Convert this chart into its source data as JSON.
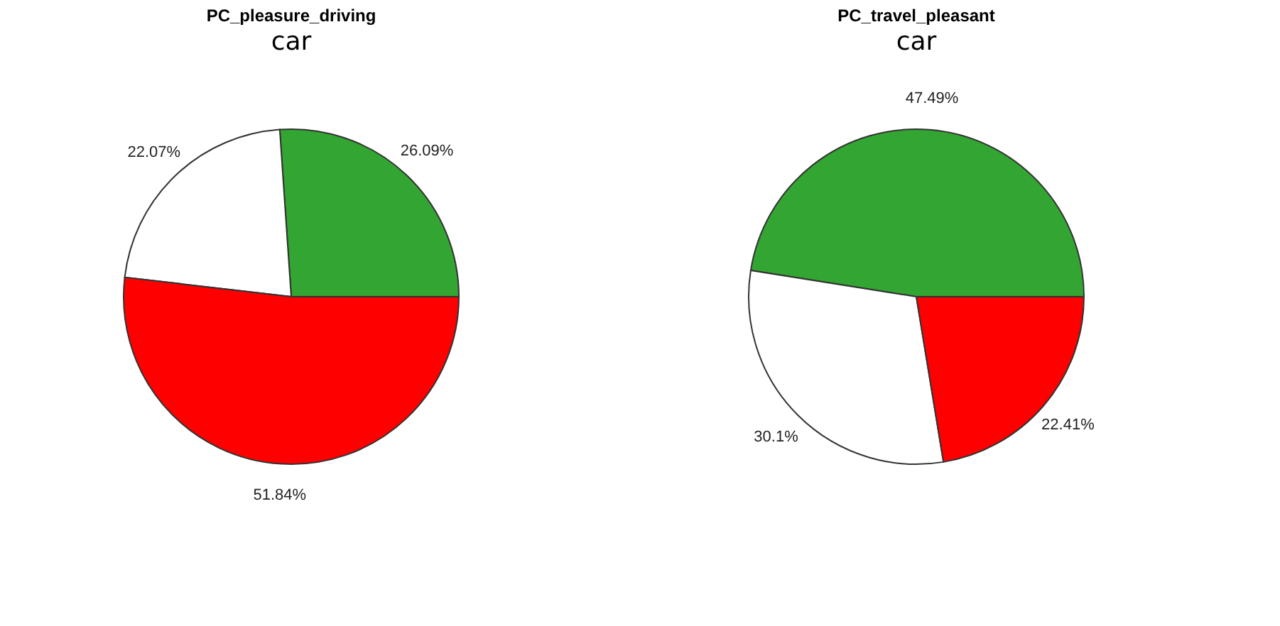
{
  "chart_data": [
    {
      "type": "pie",
      "title": "PC_pleasure_driving",
      "subtitle": "car",
      "categories": [
        null,
        null,
        null
      ],
      "values": [
        26.09,
        22.07,
        51.84
      ],
      "colors": [
        "#33a532",
        "#ffffff",
        "#ff0000"
      ],
      "value_labels": [
        "26.09%",
        "22.07%",
        "51.84%"
      ]
    },
    {
      "type": "pie",
      "title": "PC_travel_pleasant",
      "subtitle": "car",
      "categories": [
        null,
        null,
        null
      ],
      "values": [
        47.49,
        30.1,
        22.41
      ],
      "colors": [
        "#33a532",
        "#ffffff",
        "#ff0000"
      ],
      "value_labels": [
        "47.49%",
        "30.1%",
        "22.41%"
      ]
    }
  ]
}
